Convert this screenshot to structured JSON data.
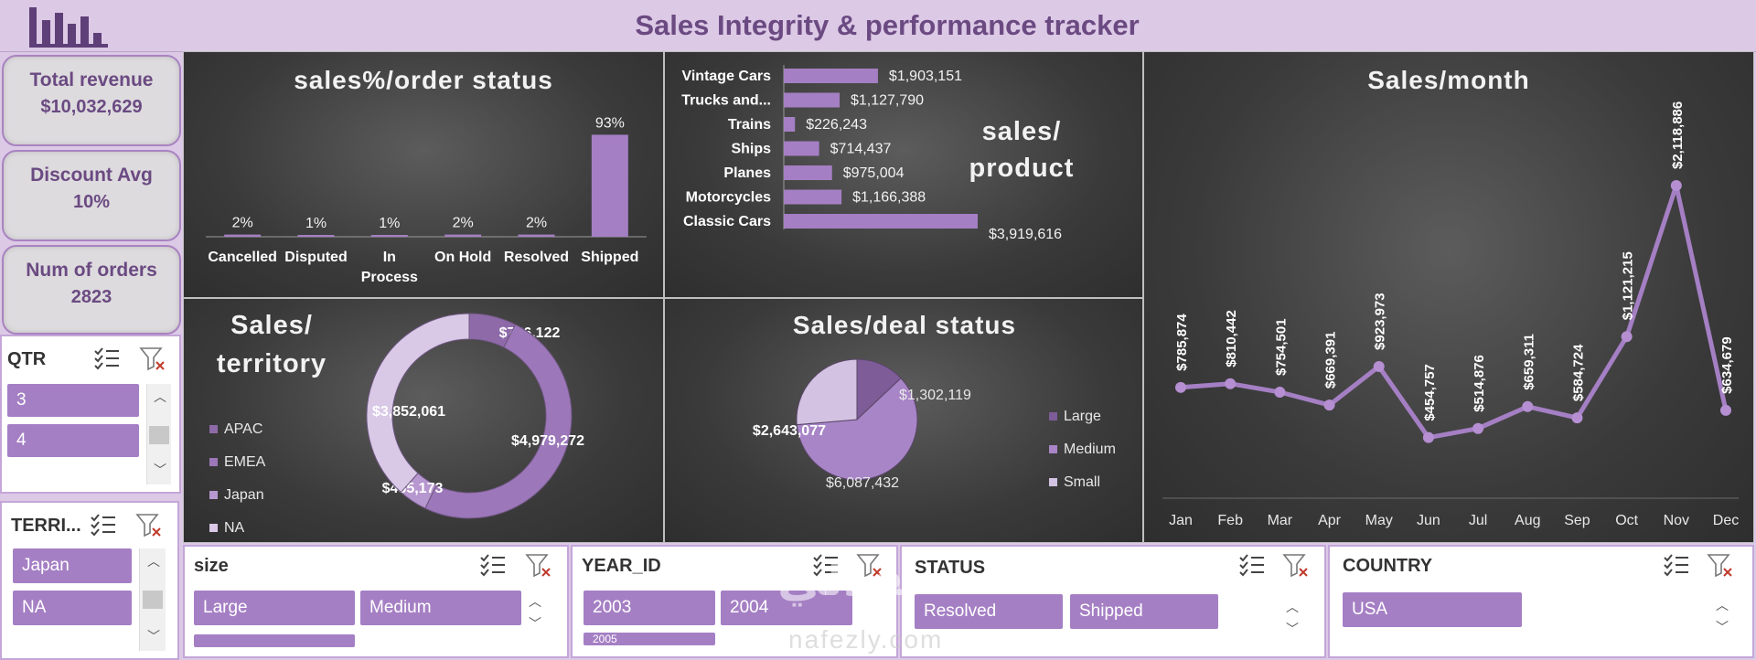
{
  "header": {
    "title": "Sales Integrity & performance tracker"
  },
  "kpis": {
    "revenue_label": "Total revenue",
    "revenue_value": "$10,032,629",
    "discount_label": "Discount Avg",
    "discount_value": "10%",
    "orders_label": "Num of orders",
    "orders_value": "2823"
  },
  "slicers": {
    "qtr": {
      "label": "QTR",
      "items": [
        "3",
        "4"
      ]
    },
    "territory": {
      "label": "TERRI...",
      "items": [
        "Japan",
        "NA"
      ]
    },
    "size": {
      "label": "size",
      "items": [
        "Large",
        "Medium"
      ]
    },
    "year": {
      "label": "YEAR_ID",
      "items": [
        "2003",
        "2004",
        "2005"
      ]
    },
    "status": {
      "label": "STATUS",
      "items": [
        "Resolved",
        "Shipped"
      ]
    },
    "country": {
      "label": "COUNTRY",
      "items": [
        "USA"
      ]
    }
  },
  "watermark": {
    "arabic": "نفذلي",
    "latin": "nafezly.com"
  },
  "colors": {
    "accent": "#a57fc4",
    "panel": "#3f3f3f",
    "header_bg": "#dcc9e6",
    "title": "#6b4a82"
  },
  "chart_data": [
    {
      "type": "bar",
      "title": "sales%/order status",
      "categories": [
        "Cancelled",
        "Disputed",
        "In Process",
        "On Hold",
        "Resolved",
        "Shipped"
      ],
      "category_lines": [
        [
          "Cancelled"
        ],
        [
          "Disputed"
        ],
        [
          "In",
          "Process"
        ],
        [
          "On Hold"
        ],
        [
          "Resolved"
        ],
        [
          "Shipped"
        ]
      ],
      "values": [
        2,
        1,
        1,
        2,
        2,
        93
      ],
      "labels": [
        "2%",
        "1%",
        "1%",
        "2%",
        "2%",
        "93%"
      ],
      "ylim": [
        0,
        100
      ]
    },
    {
      "type": "bar",
      "orientation": "horizontal",
      "title_lines": [
        "sales/",
        "product"
      ],
      "categories": [
        "Vintage Cars",
        "Trucks and...",
        "Trains",
        "Ships",
        "Planes",
        "Motorcycles",
        "Classic Cars"
      ],
      "values": [
        1903151,
        1127790,
        226243,
        714437,
        975004,
        1166388,
        3919616
      ],
      "labels": [
        "$1,903,151",
        "$1,127,790",
        "$226,243",
        "$714,437",
        "$975,004",
        "$1,166,388",
        "$3,919,616"
      ]
    },
    {
      "type": "line",
      "title": "Sales/month",
      "categories": [
        "Jan",
        "Feb",
        "Mar",
        "Apr",
        "May",
        "Jun",
        "Jul",
        "Aug",
        "Sep",
        "Oct",
        "Nov",
        "Dec"
      ],
      "values": [
        785874,
        810442,
        754501,
        669391,
        923973,
        454757,
        514876,
        659311,
        584724,
        1121215,
        2118886,
        634679
      ],
      "labels": [
        "$785,874",
        "$810,442",
        "$754,501",
        "$669,391",
        "$923,973",
        "$454,757",
        "$514,876",
        "$659,311",
        "$584,724",
        "$1,121,215",
        "$2,118,886",
        "$634,679"
      ]
    },
    {
      "type": "pie",
      "variant": "doughnut",
      "title_lines": [
        "Sales/",
        "territory"
      ],
      "categories": [
        "APAC",
        "EMEA",
        "Japan",
        "NA"
      ],
      "legend": [
        "APAC",
        "EMEA",
        "Japan",
        "NA"
      ],
      "values": [
        746122,
        4979272,
        455173,
        3852061
      ],
      "labels": [
        "$746,122",
        "$4,979,272",
        "$455,173",
        "$3,852,061"
      ],
      "colors": [
        "#8e6aa9",
        "#9c77b9",
        "#b797cf",
        "#d9c8e6"
      ]
    },
    {
      "type": "pie",
      "title": "Sales/deal status",
      "categories": [
        "Large",
        "Medium",
        "Small"
      ],
      "legend": [
        "Large",
        "Medium",
        "Small"
      ],
      "values": [
        1302119,
        6087432,
        2643077
      ],
      "labels": [
        "$1,302,119",
        "$6,087,432",
        "$2,643,077"
      ],
      "colors": [
        "#7e5c98",
        "#a885c7",
        "#d3c2e1"
      ]
    }
  ]
}
